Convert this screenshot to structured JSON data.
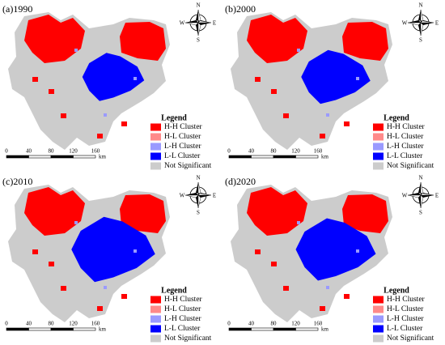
{
  "panels": [
    {
      "label": "(a)1990"
    },
    {
      "label": "(b)2000"
    },
    {
      "label": "(c)2010"
    },
    {
      "label": "(d)2020"
    }
  ],
  "legend": {
    "title": "Legend",
    "items": [
      {
        "label": "H-H Cluster",
        "color": "#ff0000"
      },
      {
        "label": "H-L Cluster",
        "color": "#ff8a8a"
      },
      {
        "label": "L-H Cluster",
        "color": "#9a9aff"
      },
      {
        "label": "L-L Cluster",
        "color": "#0000ff"
      },
      {
        "label": "Not Significant",
        "color": "#cccccc"
      }
    ]
  },
  "scale_bar": {
    "ticks": [
      "0",
      "40",
      "80",
      "120",
      "160"
    ],
    "unit": "km"
  },
  "compass": {
    "n": "N",
    "e": "E",
    "s": "S",
    "w": "W"
  }
}
